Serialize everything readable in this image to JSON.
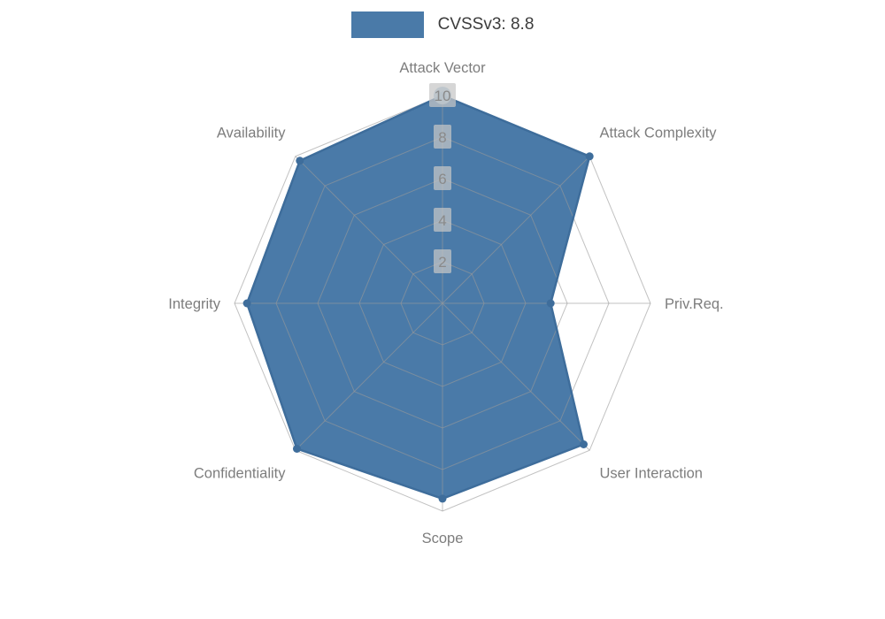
{
  "legend": {
    "label": "CVSSv3: 8.8",
    "swatch_color": "#4a7aa8"
  },
  "chart_data": {
    "type": "radar",
    "title": "CVSSv3: 8.8",
    "categories": [
      "Attack Vector",
      "Attack Complexity",
      "Priv.Req.",
      "User Interaction",
      "Scope",
      "Confidentiality",
      "Integrity",
      "Availability"
    ],
    "series": [
      {
        "name": "CVSSv3: 8.8",
        "values": [
          10,
          10,
          5.2,
          9.6,
          9.4,
          9.9,
          9.4,
          9.7
        ]
      }
    ],
    "ticks": [
      2,
      4,
      6,
      8,
      10
    ],
    "rlim": [
      0,
      10
    ],
    "grid": true,
    "legend_position": "top-center",
    "colors": {
      "fill": "#4a7aa8",
      "stroke": "#3e6d9b",
      "grid": "#999999",
      "tick_label_bg": "#c6c6c6",
      "tick_label_text": "#8a8a8a",
      "category_label": "#7d7d7d",
      "apex_marker": "#9fc0d8"
    }
  }
}
